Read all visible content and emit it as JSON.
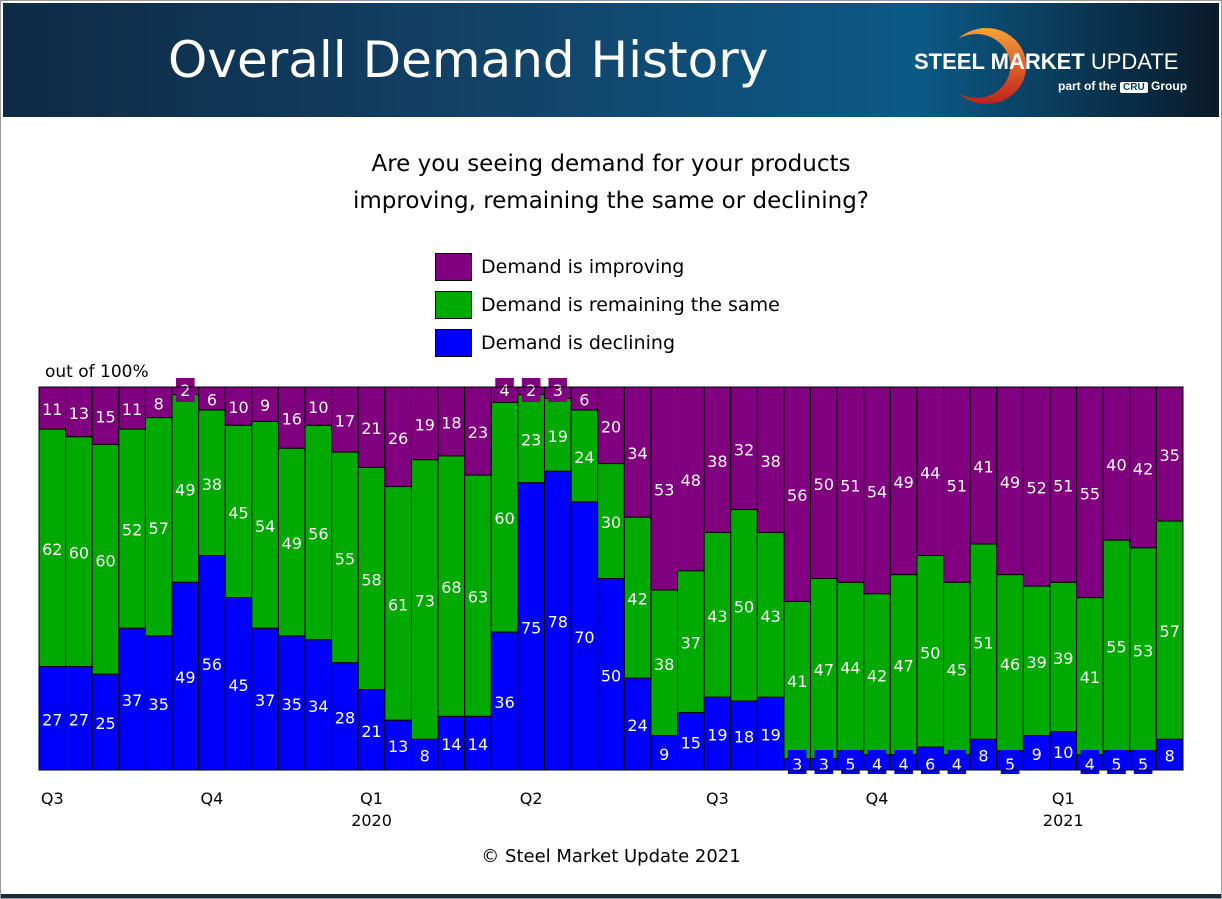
{
  "header": {
    "title": "Overall Demand History",
    "logo_text_bold": "STEEL MARKET",
    "logo_text_light": "UPDATE",
    "logo_sub_pre": "part of the",
    "logo_sub_cru": "CRU",
    "logo_sub_post": "Group"
  },
  "chart_data": {
    "type": "bar",
    "stacked": true,
    "title": "Are you seeing demand for your products improving, remaining the same or declining?",
    "title_lines": [
      "Are you seeing demand for your products",
      "improving, remaining the same or declining?"
    ],
    "ylabel": "out of 100%",
    "ylim": [
      0,
      100
    ],
    "legend_placement": "top-center",
    "series": [
      {
        "name": "Demand is improving",
        "color": "#800080",
        "values": [
          11,
          13,
          15,
          11,
          8,
          2,
          6,
          10,
          9,
          16,
          10,
          17,
          21,
          26,
          19,
          18,
          23,
          4,
          2,
          3,
          6,
          20,
          34,
          53,
          48,
          38,
          32,
          38,
          56,
          50,
          51,
          54,
          49,
          44,
          51,
          41,
          49,
          52,
          51,
          55,
          40,
          42,
          35
        ]
      },
      {
        "name": "Demand is remaining the same",
        "color": "#00aa00",
        "values": [
          62,
          60,
          60,
          52,
          57,
          49,
          38,
          45,
          54,
          49,
          56,
          55,
          58,
          61,
          73,
          68,
          63,
          60,
          23,
          19,
          24,
          30,
          42,
          38,
          37,
          43,
          50,
          43,
          41,
          47,
          44,
          42,
          47,
          50,
          45,
          51,
          46,
          39,
          39,
          41,
          55,
          53,
          57
        ]
      },
      {
        "name": "Demand is declining",
        "color": "#0000ff",
        "values": [
          27,
          27,
          25,
          37,
          35,
          49,
          56,
          45,
          37,
          35,
          34,
          28,
          21,
          13,
          8,
          14,
          14,
          36,
          75,
          78,
          70,
          50,
          24,
          9,
          15,
          19,
          18,
          19,
          3,
          3,
          5,
          4,
          4,
          6,
          4,
          8,
          5,
          9,
          10,
          4,
          5,
          5,
          8
        ]
      }
    ],
    "x_ticks": [
      {
        "index": 0,
        "label": "Q3",
        "year": ""
      },
      {
        "index": 6,
        "label": "Q4",
        "year": ""
      },
      {
        "index": 12,
        "label": "Q1",
        "year": "2020"
      },
      {
        "index": 18,
        "label": "Q2",
        "year": ""
      },
      {
        "index": 25,
        "label": "Q3",
        "year": ""
      },
      {
        "index": 31,
        "label": "Q4",
        "year": ""
      },
      {
        "index": 38,
        "label": "Q1",
        "year": "2021"
      }
    ]
  },
  "footer": {
    "copyright": "© Steel Market Update 2021"
  }
}
